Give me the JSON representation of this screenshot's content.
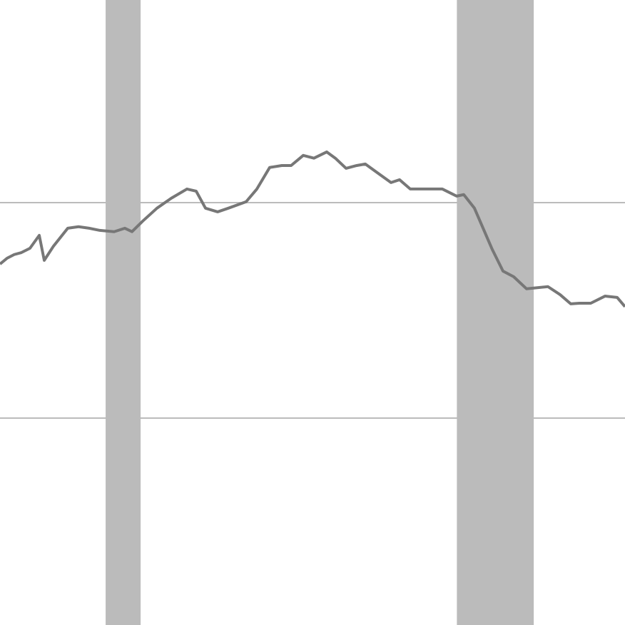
{
  "chart_data": {
    "type": "line",
    "x": [
      0,
      1.14,
      2.28,
      3.42,
      4.79,
      6.28,
      7.08,
      8.56,
      10.84,
      12.56,
      14.27,
      15.98,
      18.26,
      19.98,
      21.12,
      22.83,
      25.11,
      27.4,
      29.91,
      31.39,
      32.88,
      34.82,
      36.53,
      39.38,
      41.1,
      43.15,
      45.09,
      46.58,
      48.52,
      50.23,
      52.28,
      53.65,
      55.37,
      57.08,
      58.45,
      60.5,
      62.56,
      63.93,
      65.64,
      68.49,
      70.78,
      73.06,
      74.2,
      75.91,
      78.77,
      80.48,
      82.19,
      84.25,
      87.67,
      89.61,
      91.32,
      92.69,
      94.52,
      96.8,
      98.74,
      100
    ],
    "series": [
      {
        "color": "#777777",
        "values": [
          17.15,
          17.42,
          17.59,
          17.68,
          17.88,
          18.48,
          17.32,
          17.98,
          18.81,
          18.88,
          18.81,
          18.71,
          18.65,
          18.81,
          18.65,
          19.14,
          19.74,
          20.2,
          20.63,
          20.53,
          19.74,
          19.57,
          19.74,
          20.04,
          20.63,
          21.63,
          21.72,
          21.72,
          22.19,
          22.06,
          22.35,
          22.06,
          21.59,
          21.72,
          21.79,
          21.36,
          20.93,
          21.06,
          20.63,
          20.63,
          20.63,
          20.3,
          20.37,
          19.74,
          17.82,
          16.82,
          16.56,
          16.0,
          16.1,
          15.73,
          15.3,
          15.33,
          15.33,
          15.66,
          15.6,
          15.17
        ]
      }
    ],
    "shaded_x_ranges": [
      [
        16.9,
        22.5
      ],
      [
        73.1,
        85.4
      ]
    ],
    "shade_color": "#bbbbbb",
    "xlim": [
      0,
      100
    ],
    "ylim": [
      0.4,
      29.4
    ],
    "yticks": [
      10,
      20
    ],
    "grid": true,
    "grid_color": "#bbbbbb"
  }
}
